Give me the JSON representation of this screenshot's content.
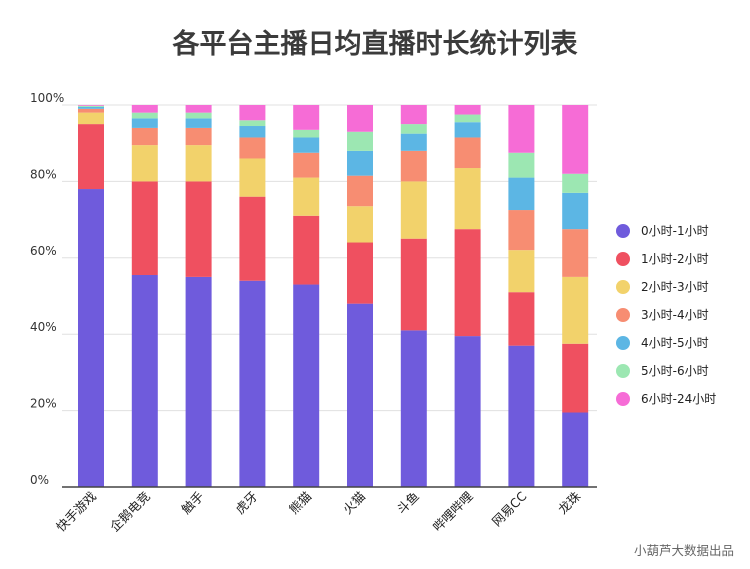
{
  "colors": [
    "#6f5bdc",
    "#ef5060",
    "#f2d26b",
    "#f78d72",
    "#5cb6e4",
    "#9ce7b2",
    "#f66cd6"
  ],
  "source": "小葫芦大数据出品",
  "chart_data": {
    "type": "bar",
    "stacked": true,
    "title": "各平台主播日均直播时长统计列表",
    "xlabel": "",
    "ylabel": "",
    "ylim": [
      0,
      100
    ],
    "yticks": [
      "0%",
      "20%",
      "40%",
      "60%",
      "80%",
      "100%"
    ],
    "grid": true,
    "legend_position": "right",
    "categories": [
      "快手游戏",
      "企鹅电竞",
      "触手",
      "虎牙",
      "熊猫",
      "火猫",
      "斗鱼",
      "哔哩哔哩",
      "网易CC",
      "龙珠"
    ],
    "series": [
      {
        "name": "0小时-1小时",
        "values": [
          78,
          55.5,
          55,
          54,
          53,
          48,
          41,
          39.5,
          37,
          19.5
        ]
      },
      {
        "name": "1小时-2小时",
        "values": [
          17,
          24.5,
          25,
          22,
          18,
          16,
          24,
          28,
          14,
          18
        ]
      },
      {
        "name": "2小时-3小时",
        "values": [
          3,
          9.5,
          9.5,
          10,
          10,
          9.5,
          15,
          16,
          11,
          17.5
        ]
      },
      {
        "name": "3小时-4小时",
        "values": [
          1,
          4.5,
          4.5,
          5.5,
          6.5,
          8,
          8,
          8,
          10.5,
          12.5
        ]
      },
      {
        "name": "4小时-5小时",
        "values": [
          0.5,
          2.5,
          2.5,
          3,
          4,
          6.5,
          4.5,
          4,
          8.5,
          9.5
        ]
      },
      {
        "name": "5小时-6小时",
        "values": [
          0.3,
          1.5,
          1.5,
          1.5,
          2,
          5,
          2.5,
          2,
          6.5,
          5
        ]
      },
      {
        "name": "6小时-24小时",
        "values": [
          0.2,
          2,
          2,
          4,
          6.5,
          7,
          5,
          2.5,
          12.5,
          18
        ]
      }
    ]
  }
}
